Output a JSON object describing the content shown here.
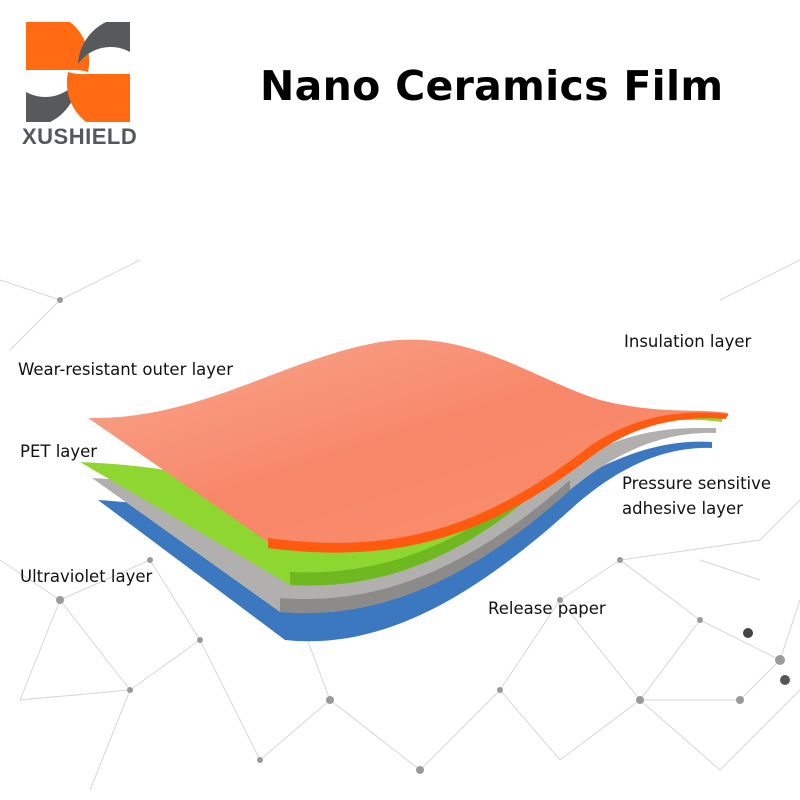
{
  "brand": {
    "name": "XUSHIELD",
    "colors": {
      "orange": "#ff6a13",
      "gray": "#58595b"
    }
  },
  "title": "Nano Ceramics Film",
  "labels": {
    "wear_resistant": "Wear-resistant outer layer",
    "pet": "PET layer",
    "ultraviolet": "Ultraviolet layer",
    "insulation": "Insulation layer",
    "pressure_line1": "Pressure sensitive",
    "pressure_line2": "adhesive layer",
    "release": "Release paper"
  },
  "layer_colors": {
    "wear_resistant": "#f98668",
    "pet": "#86d92a",
    "ultraviolet": "#a9a7a6",
    "release": "#3b78c0",
    "edge": "#ff5a10"
  }
}
